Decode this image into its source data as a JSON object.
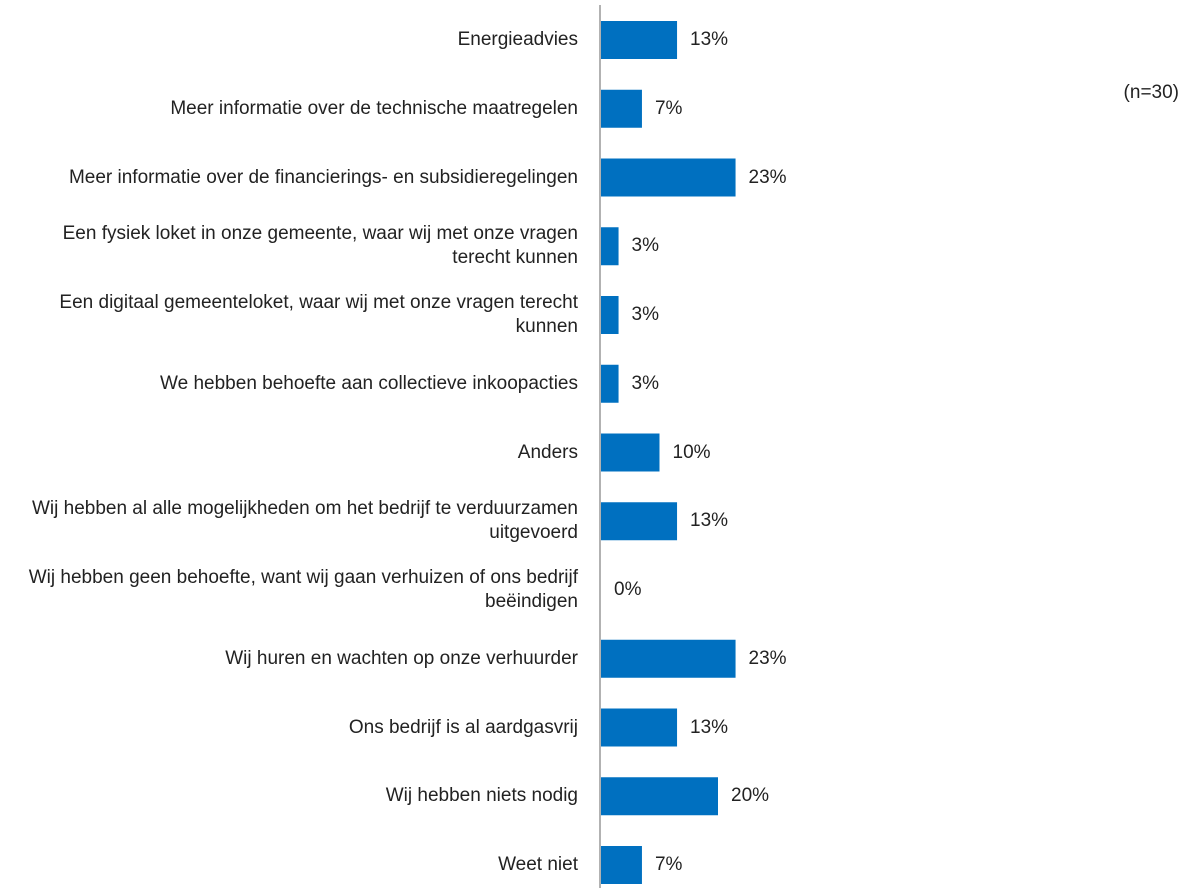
{
  "chart_data": {
    "type": "bar",
    "orientation": "horizontal",
    "annotation": "(n=30)",
    "categories": [
      "Energieadvies",
      "Meer informatie over de technische maatregelen",
      "Meer informatie over de financierings- en subsidieregelingen",
      "Een fysiek loket in onze gemeente, waar wij met onze vragen terecht kunnen",
      "Een digitaal gemeenteloket, waar wij met onze vragen terecht kunnen",
      "We hebben behoefte aan collectieve inkoopacties",
      "Anders",
      "Wij hebben al alle mogelijkheden om het bedrijf te verduurzamen uitgevoerd",
      "Wij hebben geen behoefte, want wij gaan verhuizen of ons bedrijf beëindigen",
      "Wij huren en wachten op onze verhuurder",
      "Ons bedrijf is al aardgasvrij",
      "Wij hebben niets nodig",
      "Weet niet"
    ],
    "values": [
      13,
      7,
      23,
      3,
      3,
      3,
      10,
      13,
      0,
      23,
      13,
      20,
      7
    ],
    "value_labels": [
      "13%",
      "7%",
      "23%",
      "3%",
      "3%",
      "3%",
      "10%",
      "13%",
      "0%",
      "23%",
      "13%",
      "20%",
      "7%"
    ],
    "color": "#0070c0"
  }
}
